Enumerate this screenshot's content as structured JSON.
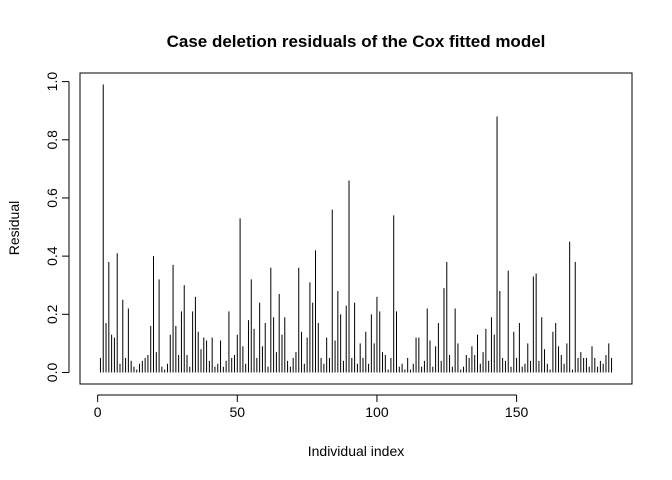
{
  "chart_data": {
    "type": "bar",
    "title": "Case deletion residuals of the Cox fitted model",
    "xlabel": "Individual index",
    "ylabel": "Residual",
    "color": "#000000",
    "values": [
      0.05,
      0.99,
      0.17,
      0.38,
      0.13,
      0.12,
      0.41,
      0.03,
      0.25,
      0.05,
      0.22,
      0.04,
      0.02,
      0.01,
      0.03,
      0.04,
      0.05,
      0.06,
      0.16,
      0.4,
      0.07,
      0.32,
      0.02,
      0.01,
      0.03,
      0.13,
      0.37,
      0.16,
      0.06,
      0.21,
      0.3,
      0.06,
      0.02,
      0.21,
      0.26,
      0.14,
      0.08,
      0.12,
      0.11,
      0.04,
      0.12,
      0.02,
      0.03,
      0.11,
      0.02,
      0.04,
      0.21,
      0.05,
      0.06,
      0.13,
      0.53,
      0.09,
      0.03,
      0.18,
      0.32,
      0.15,
      0.05,
      0.24,
      0.09,
      0.17,
      0.02,
      0.36,
      0.19,
      0.07,
      0.27,
      0.13,
      0.19,
      0.04,
      0.02,
      0.05,
      0.07,
      0.36,
      0.14,
      0.03,
      0.12,
      0.31,
      0.24,
      0.42,
      0.17,
      0.05,
      0.03,
      0.12,
      0.05,
      0.56,
      0.11,
      0.28,
      0.2,
      0.04,
      0.23,
      0.66,
      0.05,
      0.24,
      0.03,
      0.1,
      0.05,
      0.14,
      0.03,
      0.2,
      0.1,
      0.26,
      0.21,
      0.07,
      0.06,
      0.01,
      0.05,
      0.54,
      0.21,
      0.02,
      0.03,
      0.01,
      0.05,
      0.01,
      0.03,
      0.12,
      0.12,
      0.02,
      0.04,
      0.22,
      0.11,
      0.02,
      0.09,
      0.17,
      0.04,
      0.29,
      0.38,
      0.06,
      0.02,
      0.22,
      0.1,
      0.01,
      0.02,
      0.06,
      0.05,
      0.09,
      0.06,
      0.13,
      0.03,
      0.07,
      0.15,
      0.04,
      0.19,
      0.13,
      0.88,
      0.28,
      0.05,
      0.04,
      0.35,
      0.02,
      0.14,
      0.05,
      0.17,
      0.02,
      0.03,
      0.1,
      0.04,
      0.33,
      0.34,
      0.04,
      0.19,
      0.08,
      0.03,
      0.01,
      0.14,
      0.17,
      0.09,
      0.06,
      0.03,
      0.1,
      0.45,
      0.01,
      0.38,
      0.05,
      0.07,
      0.05,
      0.05,
      0.02,
      0.09,
      0.05,
      0.02,
      0.04,
      0.03,
      0.06,
      0.1,
      0.05
    ],
    "xlim": [
      -6.32,
      191.32
    ],
    "xticks": [
      0,
      50,
      100,
      150
    ],
    "ylim": [
      -0.0396,
      1.0296
    ],
    "yticks": [
      {
        "value": 0,
        "label": "0.0"
      },
      {
        "value": 0.2,
        "label": "0.2"
      },
      {
        "value": 0.4,
        "label": "0.4"
      },
      {
        "value": 0.6,
        "label": "0.6"
      },
      {
        "value": 0.8,
        "label": "0.8"
      },
      {
        "value": 1,
        "label": "1.0"
      }
    ]
  }
}
